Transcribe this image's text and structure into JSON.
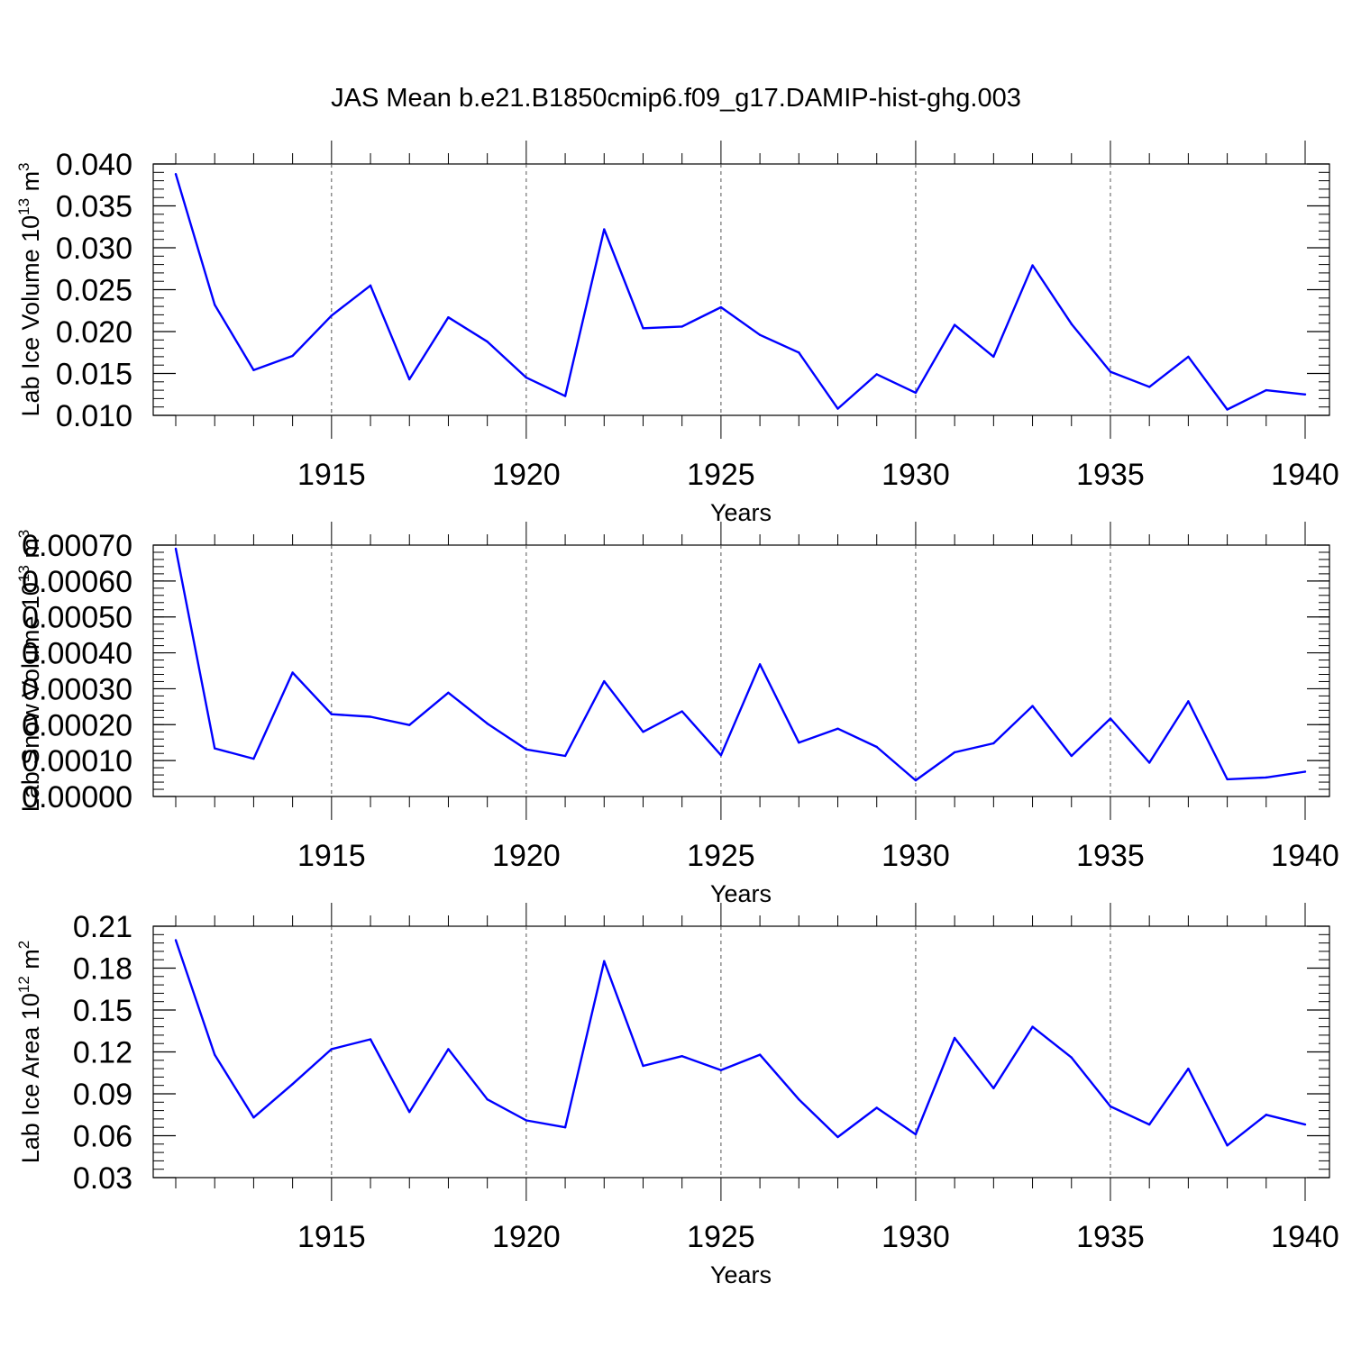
{
  "title": "JAS Mean b.e21.B1850cmip6.f09_g17.DAMIP-hist-ghg.003",
  "line_color": "#0000ff",
  "chart_data": [
    {
      "type": "line",
      "ylabel": {
        "text": "Lab Ice Volume 10",
        "exponent": "13",
        "unit": " m",
        "unit_exponent": "3"
      },
      "xlabel": "Years",
      "xlim": [
        1911,
        1940
      ],
      "ylim": [
        0.01,
        0.04
      ],
      "xticks": [
        1915,
        1920,
        1925,
        1930,
        1935,
        1940
      ],
      "yticks": [
        0.01,
        0.015,
        0.02,
        0.025,
        0.03,
        0.035,
        0.04
      ],
      "ytick_labels": [
        "0.010",
        "0.015",
        "0.020",
        "0.025",
        "0.030",
        "0.035",
        "0.040"
      ],
      "y_minor_step": 0.001,
      "grid": "vertical dashed at major x ticks",
      "x": [
        1911,
        1912,
        1913,
        1914,
        1915,
        1916,
        1917,
        1918,
        1919,
        1920,
        1921,
        1922,
        1923,
        1924,
        1925,
        1926,
        1927,
        1928,
        1929,
        1930,
        1931,
        1932,
        1933,
        1934,
        1935,
        1936,
        1937,
        1938,
        1939,
        1940
      ],
      "values": [
        0.0388,
        0.0232,
        0.0154,
        0.0171,
        0.0219,
        0.0255,
        0.0143,
        0.0217,
        0.0188,
        0.0145,
        0.0123,
        0.0322,
        0.0204,
        0.0206,
        0.0229,
        0.0196,
        0.0175,
        0.0108,
        0.0149,
        0.0127,
        0.0208,
        0.017,
        0.0279,
        0.0209,
        0.0152,
        0.0134,
        0.017,
        0.0107,
        0.013,
        0.0125
      ]
    },
    {
      "type": "line",
      "ylabel": {
        "text": "Lab Snow Volume 10",
        "exponent": "13",
        "unit": " m",
        "unit_exponent": "3"
      },
      "xlabel": "Years",
      "xlim": [
        1911,
        1940
      ],
      "ylim": [
        0.0,
        0.0007
      ],
      "xticks": [
        1915,
        1920,
        1925,
        1930,
        1935,
        1940
      ],
      "yticks": [
        0.0,
        0.0001,
        0.0002,
        0.0003,
        0.0004,
        0.0005,
        0.0006,
        0.0007
      ],
      "ytick_labels": [
        "0.00000",
        "0.00010",
        "0.00020",
        "0.00030",
        "0.00040",
        "0.00050",
        "0.00060",
        "0.00070"
      ],
      "y_minor_step": 2e-05,
      "grid": "vertical dashed at major x ticks",
      "x": [
        1911,
        1912,
        1913,
        1914,
        1915,
        1916,
        1917,
        1918,
        1919,
        1920,
        1921,
        1922,
        1923,
        1924,
        1925,
        1926,
        1927,
        1928,
        1929,
        1930,
        1931,
        1932,
        1933,
        1934,
        1935,
        1936,
        1937,
        1938,
        1939,
        1940
      ],
      "values": [
        0.00069,
        0.000134,
        0.000105,
        0.000345,
        0.000229,
        0.000222,
        0.000199,
        0.000289,
        0.000203,
        0.000131,
        0.000113,
        0.000321,
        0.00018,
        0.000237,
        0.000115,
        0.000368,
        0.00015,
        0.000189,
        0.000138,
        4.5e-05,
        0.000123,
        0.000148,
        0.000252,
        0.000113,
        0.000217,
        9.4e-05,
        0.000265,
        4.8e-05,
        5.3e-05,
        6.9e-05
      ]
    },
    {
      "type": "line",
      "ylabel": {
        "text": "Lab Ice Area 10",
        "exponent": "12",
        "unit": " m",
        "unit_exponent": "2"
      },
      "xlabel": "Years",
      "xlim": [
        1911,
        1940
      ],
      "ylim": [
        0.03,
        0.21
      ],
      "xticks": [
        1915,
        1920,
        1925,
        1930,
        1935,
        1940
      ],
      "yticks": [
        0.03,
        0.06,
        0.09,
        0.12,
        0.15,
        0.18,
        0.21
      ],
      "ytick_labels": [
        "0.03",
        "0.06",
        "0.09",
        "0.12",
        "0.15",
        "0.18",
        "0.21"
      ],
      "y_minor_step": 0.006,
      "grid": "vertical dashed at major x ticks",
      "x": [
        1911,
        1912,
        1913,
        1914,
        1915,
        1916,
        1917,
        1918,
        1919,
        1920,
        1921,
        1922,
        1923,
        1924,
        1925,
        1926,
        1927,
        1928,
        1929,
        1930,
        1931,
        1932,
        1933,
        1934,
        1935,
        1936,
        1937,
        1938,
        1939,
        1940
      ],
      "values": [
        0.2,
        0.118,
        0.073,
        0.097,
        0.122,
        0.129,
        0.077,
        0.122,
        0.086,
        0.071,
        0.066,
        0.185,
        0.11,
        0.117,
        0.107,
        0.118,
        0.086,
        0.059,
        0.08,
        0.061,
        0.13,
        0.094,
        0.138,
        0.116,
        0.081,
        0.068,
        0.108,
        0.053,
        0.075,
        0.068
      ]
    }
  ]
}
